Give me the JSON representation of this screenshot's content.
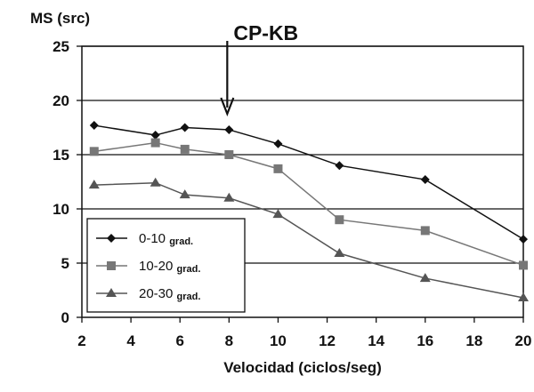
{
  "chart_data": {
    "type": "line",
    "ylabel": "MS (src)",
    "xlabel": "Velocidad (ciclos/seg)",
    "xlim": [
      2,
      20
    ],
    "ylim": [
      0,
      25
    ],
    "xticks": [
      "2",
      "4",
      "6",
      "8",
      "10",
      "12",
      "14",
      "16",
      "18",
      "20"
    ],
    "yticks": [
      "0",
      "5",
      "10",
      "15",
      "20",
      "25"
    ],
    "grid": "horizontal",
    "legend_position": "bottom-left",
    "annotation": {
      "text": "CP-KB",
      "x": 8
    },
    "series": [
      {
        "name": "0-10",
        "name_suffix": "grad.",
        "marker": "diamond",
        "color": "#111111",
        "x": [
          2.5,
          5,
          6.2,
          8,
          10,
          12.5,
          16,
          20
        ],
        "values": [
          17.7,
          16.8,
          17.5,
          17.3,
          16.0,
          14.0,
          12.7,
          7.2
        ]
      },
      {
        "name": "10-20",
        "name_suffix": "grad.",
        "marker": "square",
        "color": "#777777",
        "x": [
          2.5,
          5,
          6.2,
          8,
          10,
          12.5,
          16,
          20
        ],
        "values": [
          15.3,
          16.1,
          15.5,
          15.0,
          13.7,
          9.0,
          8.0,
          4.8
        ]
      },
      {
        "name": "20-30",
        "name_suffix": "grad.",
        "marker": "triangle",
        "color": "#555555",
        "x": [
          2.5,
          5,
          6.2,
          8,
          10,
          12.5,
          16,
          20
        ],
        "values": [
          12.2,
          12.4,
          11.3,
          11.0,
          9.5,
          5.9,
          3.6,
          1.8
        ]
      }
    ]
  }
}
